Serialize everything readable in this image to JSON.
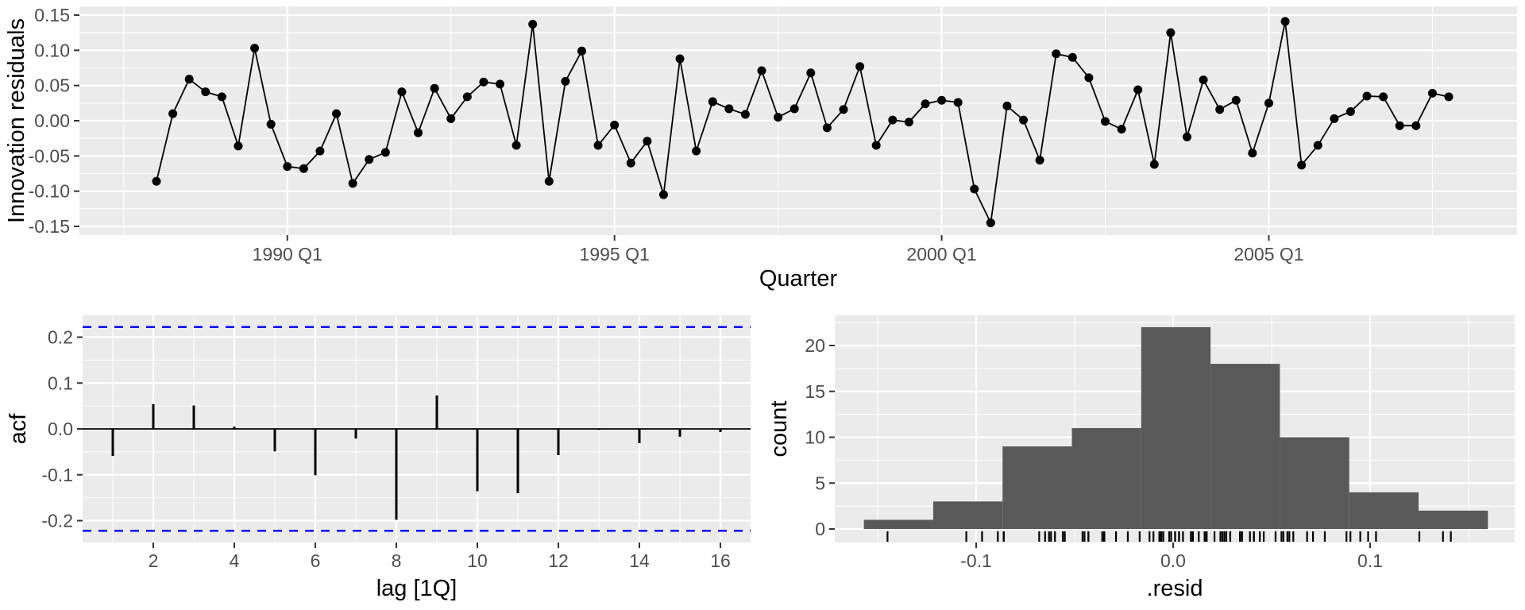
{
  "figure": {
    "background": "#ffffff",
    "panel_background": "#ebebeb",
    "grid_color": "#ffffff",
    "tick_mark_color": "#333333",
    "tick_label_color": "#4d4d4d",
    "axis_title_color": "#000000"
  },
  "chart_data": [
    {
      "type": "line",
      "name": "innovation-residuals-time-series",
      "xlabel": "Quarter",
      "ylabel": "Innovation residuals",
      "marker": "point",
      "line_color": "#000000",
      "point_color": "#000000",
      "values": [
        -0.086,
        0.01,
        0.059,
        0.041,
        0.034,
        -0.036,
        0.103,
        -0.005,
        -0.065,
        -0.068,
        -0.043,
        0.01,
        -0.089,
        -0.055,
        -0.045,
        0.041,
        -0.017,
        0.046,
        0.003,
        0.034,
        0.055,
        0.052,
        -0.035,
        0.137,
        -0.086,
        0.056,
        0.099,
        -0.035,
        -0.006,
        -0.06,
        -0.029,
        -0.105,
        0.088,
        -0.043,
        0.027,
        0.017,
        0.009,
        0.071,
        0.005,
        0.017,
        0.068,
        -0.01,
        0.016,
        0.077,
        -0.035,
        0.001,
        -0.002,
        0.024,
        0.029,
        0.026,
        -0.097,
        -0.145,
        0.021,
        0.001,
        -0.056,
        0.095,
        0.09,
        0.061,
        -0.001,
        -0.012,
        0.044,
        -0.062,
        0.125,
        -0.023,
        0.058,
        0.016,
        0.029,
        -0.046,
        0.025,
        0.141,
        -0.063,
        -0.035,
        0.003,
        0.013,
        0.035,
        0.034,
        -0.007,
        -0.007,
        0.039,
        0.034
      ],
      "x_ticks": [
        {
          "index": 8,
          "label": "1990 Q1"
        },
        {
          "index": 28,
          "label": "1995 Q1"
        },
        {
          "index": 48,
          "label": "2000 Q1"
        },
        {
          "index": 68,
          "label": "2005 Q1"
        }
      ],
      "x_minor_indices": [
        -2,
        18,
        38,
        58,
        78
      ],
      "y_ticks": [
        {
          "value": 0.15,
          "label": "0.15"
        },
        {
          "value": 0.1,
          "label": "0.10"
        },
        {
          "value": 0.05,
          "label": "0.05"
        },
        {
          "value": 0.0,
          "label": "0.00"
        },
        {
          "value": -0.05,
          "label": "-0.05"
        },
        {
          "value": -0.1,
          "label": "-0.10"
        },
        {
          "value": -0.15,
          "label": "-0.15"
        }
      ],
      "y_minor": [
        0.125,
        0.075,
        0.025,
        -0.025,
        -0.075,
        -0.125
      ],
      "ylim": [
        -0.163,
        0.163
      ],
      "grid": true
    },
    {
      "type": "bar",
      "name": "acf",
      "xlabel": "lag [1Q]",
      "ylabel": "acf",
      "bar_color": "#000000",
      "zero_line_color": "#000000",
      "conf_band": 0.222,
      "conf_line_color": "#0000EE",
      "conf_line_style": "dashed",
      "lags": [
        1,
        2,
        3,
        4,
        5,
        6,
        7,
        8,
        9,
        10,
        11,
        12,
        13,
        14,
        15,
        16
      ],
      "values": [
        -0.059,
        0.054,
        0.051,
        0.005,
        -0.049,
        -0.101,
        -0.021,
        -0.198,
        0.073,
        -0.136,
        -0.14,
        -0.057,
        -0.002,
        -0.031,
        -0.017,
        -0.007
      ],
      "x_ticks": [
        {
          "value": 2,
          "label": "2"
        },
        {
          "value": 4,
          "label": "4"
        },
        {
          "value": 6,
          "label": "6"
        },
        {
          "value": 8,
          "label": "8"
        },
        {
          "value": 10,
          "label": "10"
        },
        {
          "value": 12,
          "label": "12"
        },
        {
          "value": 14,
          "label": "14"
        },
        {
          "value": 16,
          "label": "16"
        }
      ],
      "x_minor": [
        1,
        3,
        5,
        7,
        9,
        11,
        13,
        15
      ],
      "y_ticks": [
        {
          "value": 0.2,
          "label": "0.2"
        },
        {
          "value": 0.1,
          "label": "0.1"
        },
        {
          "value": 0.0,
          "label": "0.0"
        },
        {
          "value": -0.1,
          "label": "-0.1"
        },
        {
          "value": -0.2,
          "label": "-0.2"
        }
      ],
      "y_minor": [
        0.15,
        0.05,
        -0.05,
        -0.15
      ],
      "ylim": [
        -0.248,
        0.248
      ],
      "grid": true
    },
    {
      "type": "histogram",
      "name": "resid-histogram",
      "xlabel": ".resid",
      "ylabel": "count",
      "bar_color": "#595959",
      "bin_start": -0.157,
      "bin_width": 0.0352,
      "counts": [
        1,
        3,
        9,
        11,
        22,
        18,
        10,
        4,
        2
      ],
      "x_ticks": [
        {
          "value": -0.1,
          "label": "-0.1"
        },
        {
          "value": 0.0,
          "label": "0.0"
        },
        {
          "value": 0.1,
          "label": "0.1"
        }
      ],
      "x_minor": [
        -0.15,
        -0.05,
        0.05,
        0.15
      ],
      "y_ticks": [
        {
          "value": 0,
          "label": "0"
        },
        {
          "value": 5,
          "label": "5"
        },
        {
          "value": 10,
          "label": "10"
        },
        {
          "value": 15,
          "label": "15"
        },
        {
          "value": 20,
          "label": "20"
        }
      ],
      "y_minor": [
        2.5,
        7.5,
        12.5,
        17.5,
        22.5
      ],
      "xlim": [
        -0.173,
        0.173
      ],
      "rug": true,
      "rug_color": "#000000",
      "grid": true
    }
  ]
}
